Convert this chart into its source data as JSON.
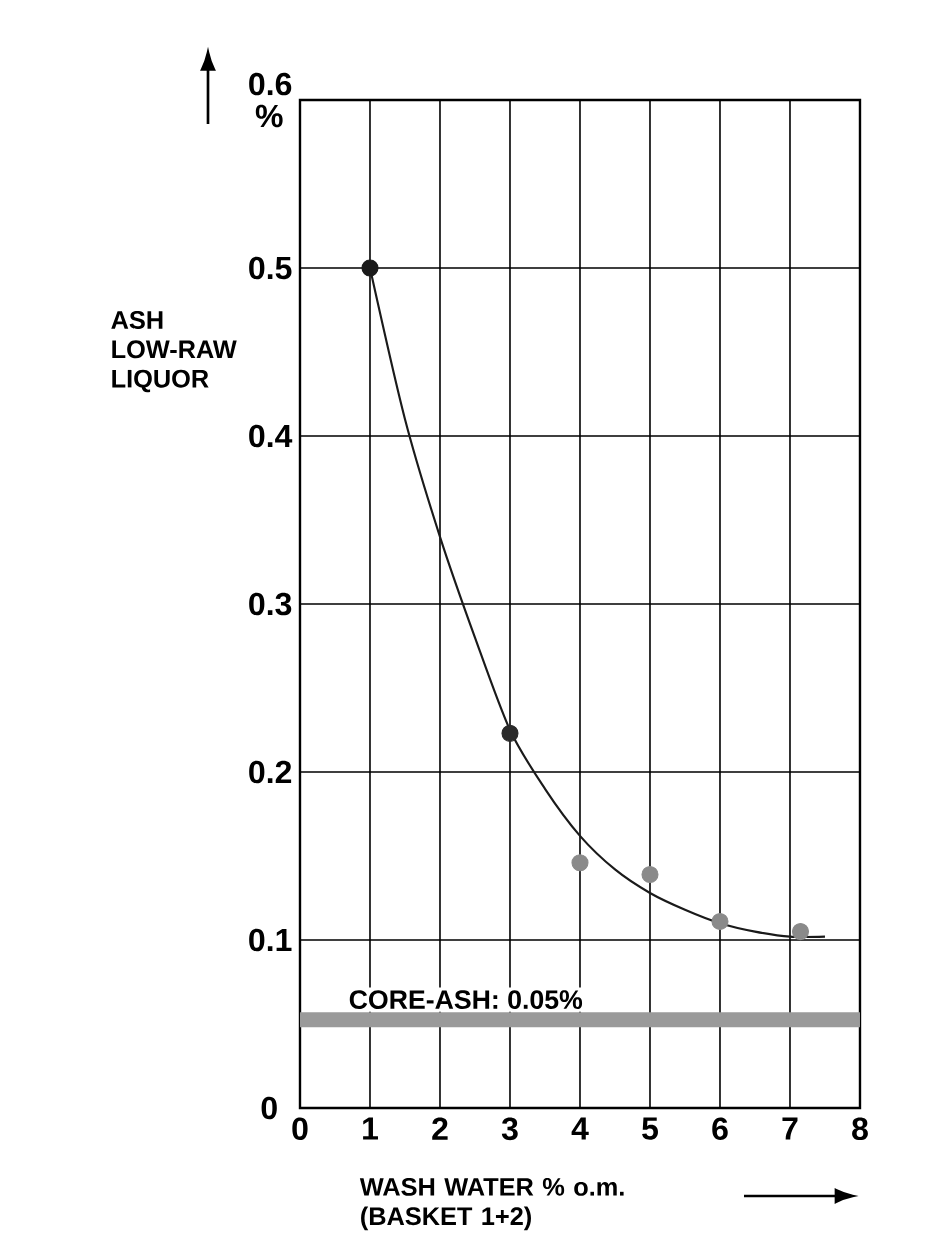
{
  "chart_data": {
    "type": "line",
    "xlabel": "WASH WATER % o.m. (BASKET 1+2)",
    "ylabel": "ASH LOW-RAW LIQUOR",
    "xlim": [
      0,
      8
    ],
    "ylim": [
      0,
      0.6
    ],
    "xticks": [
      0,
      1,
      2,
      3,
      4,
      5,
      6,
      7,
      8
    ],
    "yticks": [
      0,
      0.1,
      0.2,
      0.3,
      0.4,
      0.5,
      {
        "value": 0.6,
        "label": "0.6 %"
      }
    ],
    "grid": true,
    "series": [
      {
        "type": "scatter",
        "marker": "circle",
        "x": [
          1,
          3,
          4,
          5,
          6,
          7.15
        ],
        "values": [
          0.5,
          0.223,
          0.146,
          0.139,
          0.111,
          0.105
        ],
        "colors": [
          "#1a1a1a",
          "#2a2a2a",
          "#8a8a8a",
          "#8a8a8a",
          "#8a8a8a",
          "#8a8a8a"
        ]
      },
      {
        "color": "#1a1a1a",
        "x": [
          1,
          1.5,
          2,
          2.5,
          3,
          3.5,
          4,
          4.5,
          5,
          5.5,
          6,
          6.5,
          7,
          7.5
        ],
        "values": [
          0.5,
          0.41,
          0.34,
          0.28,
          0.225,
          0.19,
          0.162,
          0.142,
          0.128,
          0.118,
          0.11,
          0.105,
          0.102,
          0.102
        ]
      }
    ],
    "bands": [
      {
        "axis": "y",
        "from": 0.048,
        "to": 0.057,
        "label": "CORE-ASH: 0.05%",
        "color": "#9a9a9a"
      }
    ]
  }
}
